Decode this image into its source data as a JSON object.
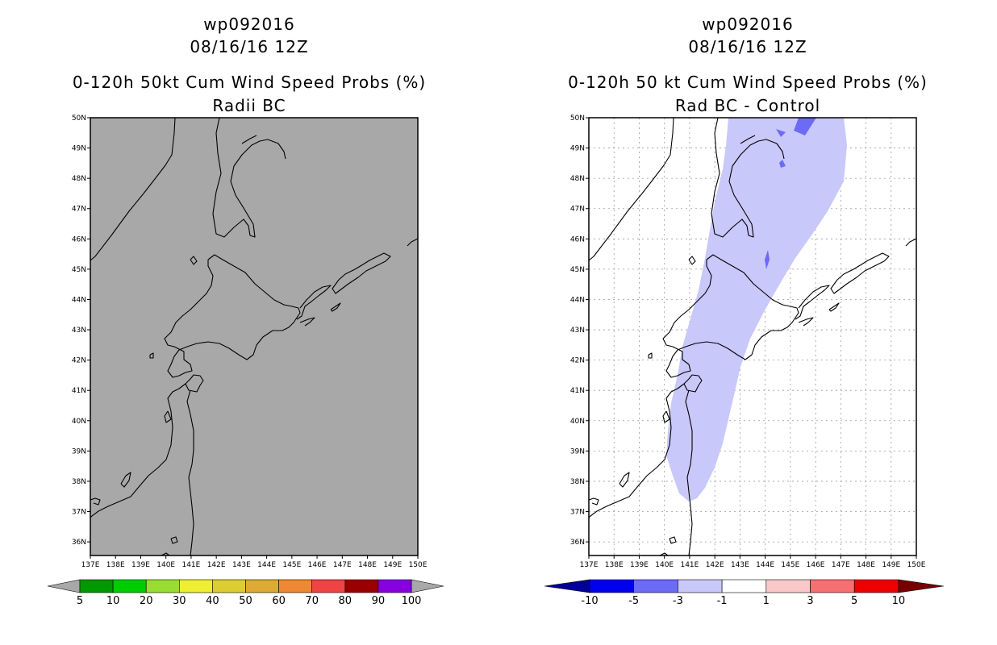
{
  "panels": [
    {
      "storm_id": "wp092016",
      "datetime": "08/16/16 12Z",
      "title": "0-120h 50kt Cum Wind Speed Probs (%)",
      "subtitle": "Radii BC",
      "grid": false,
      "colorbar": {
        "labels": [
          "5",
          "10",
          "20",
          "30",
          "40",
          "50",
          "60",
          "70",
          "80",
          "90",
          "100"
        ],
        "colors": [
          "#009900",
          "#00cc00",
          "#99dd33",
          "#eeee33",
          "#ddcc33",
          "#ddaa33",
          "#ee8833",
          "#ee4444",
          "#990000",
          "#8800dd"
        ],
        "end_colors": [
          "#a8a8a8",
          "#a8a8a8"
        ]
      }
    },
    {
      "storm_id": "wp092016",
      "datetime": "08/16/16 12Z",
      "title": "0-120h 50 kt Cum Wind Speed Probs (%)",
      "subtitle": "Rad BC - Control",
      "grid": true,
      "colorbar": {
        "labels": [
          "-10",
          "-5",
          "-3",
          "-1",
          "1",
          "3",
          "5",
          "10"
        ],
        "colors": [
          "#0000ee",
          "#6b6bf5",
          "#c8c8fa",
          "#ffffff",
          "#fac8c8",
          "#f57070",
          "#ee0000"
        ],
        "end_colors": [
          "#000099",
          "#770000"
        ]
      }
    }
  ],
  "map": {
    "lon_labels": [
      "137E",
      "138E",
      "139E",
      "140E",
      "141E",
      "142E",
      "143E",
      "144E",
      "145E",
      "146E",
      "147E",
      "148E",
      "149E",
      "150E"
    ],
    "lat_labels": [
      "50N",
      "49N",
      "48N",
      "47N",
      "46N",
      "45N",
      "44N",
      "43N",
      "42N",
      "41N",
      "40N",
      "39N",
      "38N",
      "37N",
      "36N"
    ],
    "background_color": "#a8a8a8",
    "difference_fill_color": "#c8c8fa",
    "difference_peak_color": "#6b6bf5"
  }
}
